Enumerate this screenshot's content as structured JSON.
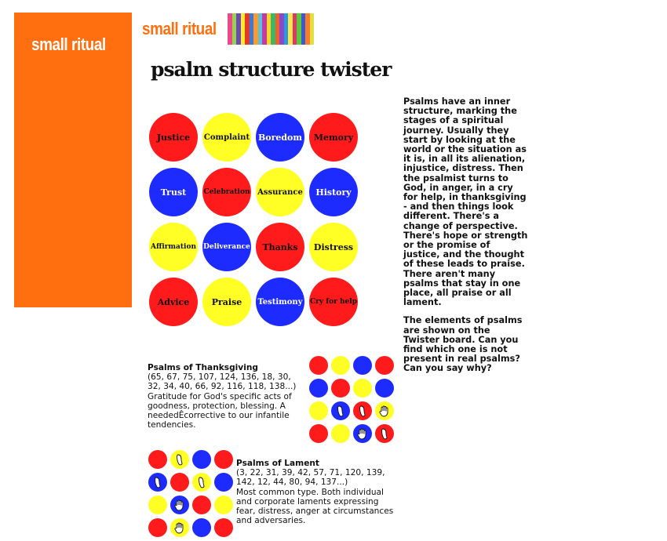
{
  "site": {
    "logo_text": "small ritual"
  },
  "colors": {
    "orange": "#ff6f10",
    "red": "#ff1b1b",
    "yellow": "#ffff26",
    "blue": "#1e2bff",
    "stripes": [
      "#e84a8a",
      "#9ad14a",
      "#6a49b8",
      "#ffea2a",
      "#e23a2a",
      "#3a7ad8",
      "#ff9a2a",
      "#5ac0e0",
      "#c43aa0",
      "#ffd42a",
      "#3ab86a",
      "#f0602a",
      "#8a4ac8",
      "#2a9ae0",
      "#ffe44a",
      "#d83a6a",
      "#60c83a",
      "#3a5ad0",
      "#ff7a2a",
      "#e0e040"
    ]
  },
  "page": {
    "title": "psalm structure twister"
  },
  "board": {
    "circles": [
      {
        "label": "Justice",
        "color": "red"
      },
      {
        "label": "Complaint",
        "color": "yellow"
      },
      {
        "label": "Boredom",
        "color": "blue"
      },
      {
        "label": "Memory",
        "color": "red"
      },
      {
        "label": "Trust",
        "color": "blue"
      },
      {
        "label": "Celebration",
        "color": "red"
      },
      {
        "label": "Assurance",
        "color": "yellow"
      },
      {
        "label": "History",
        "color": "blue"
      },
      {
        "label": "Affirmation",
        "color": "yellow"
      },
      {
        "label": "Deliverance",
        "color": "blue"
      },
      {
        "label": "Thanks",
        "color": "red"
      },
      {
        "label": "Distress",
        "color": "yellow"
      },
      {
        "label": "Advice",
        "color": "red"
      },
      {
        "label": "Praise",
        "color": "yellow"
      },
      {
        "label": "Testimony",
        "color": "blue"
      },
      {
        "label": "Cry for help",
        "color": "red"
      }
    ]
  },
  "intro": {
    "paragraph_1": "Psalms have an inner structure, marking the stages of a spiritual journey. Usually they start by looking at the world or the situation as it is, in all its alienation, injustice, distress. Then the psalmist turns to God, in anger, in a cry for help, in thanksgiving - and then things look different. There's a change of perspective. There's hope or strength or the promise of justice, and the thought of these leads to praise. There aren't many psalms that stay in one place, all praise or all lament.",
    "paragraph_2": "The elements of psalms are shown on the Twister board. Can you find which one is not present in real psalms? Can you say why?"
  },
  "thanksgiving": {
    "heading": "Psalms of Thanksgiving",
    "numbers": "(65, 67, 75, 107, 124, 136, 18, 30, 32, 34, 40, 66, 92, 116, 118, 138...)",
    "description": "Gratitude for God's specific acts of goodness, protection, blessing. A neededÊcorrective to our infantile tendencies.",
    "board": [
      {
        "color": "red",
        "icon": ""
      },
      {
        "color": "yellow",
        "icon": ""
      },
      {
        "color": "blue",
        "icon": ""
      },
      {
        "color": "red",
        "icon": ""
      },
      {
        "color": "blue",
        "icon": ""
      },
      {
        "color": "red",
        "icon": ""
      },
      {
        "color": "yellow",
        "icon": ""
      },
      {
        "color": "blue",
        "icon": ""
      },
      {
        "color": "yellow",
        "icon": ""
      },
      {
        "color": "blue",
        "icon": "foot"
      },
      {
        "color": "red",
        "icon": "foot"
      },
      {
        "color": "yellow",
        "icon": "hand"
      },
      {
        "color": "red",
        "icon": ""
      },
      {
        "color": "yellow",
        "icon": ""
      },
      {
        "color": "blue",
        "icon": "hand"
      },
      {
        "color": "red",
        "icon": "foot"
      }
    ]
  },
  "lament": {
    "heading": "Psalms of Lament",
    "numbers": "(3, 22, 31, 39, 42, 57, 71, 120, 139, 142, 12, 44, 80, 94, 137...)",
    "description": "Most common type. Both individual and corporate laments expressing fear, distress, anger at circumstances and adversaries.",
    "board": [
      {
        "color": "red",
        "icon": ""
      },
      {
        "color": "yellow",
        "icon": "foot"
      },
      {
        "color": "blue",
        "icon": ""
      },
      {
        "color": "red",
        "icon": ""
      },
      {
        "color": "blue",
        "icon": "foot"
      },
      {
        "color": "red",
        "icon": ""
      },
      {
        "color": "yellow",
        "icon": "foot"
      },
      {
        "color": "blue",
        "icon": ""
      },
      {
        "color": "yellow",
        "icon": ""
      },
      {
        "color": "blue",
        "icon": "hand"
      },
      {
        "color": "red",
        "icon": ""
      },
      {
        "color": "yellow",
        "icon": ""
      },
      {
        "color": "red",
        "icon": ""
      },
      {
        "color": "yellow",
        "icon": "hand"
      },
      {
        "color": "blue",
        "icon": ""
      },
      {
        "color": "red",
        "icon": ""
      }
    ]
  }
}
